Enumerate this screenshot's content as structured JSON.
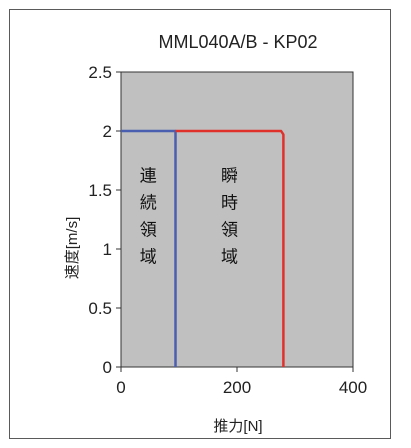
{
  "chart_data": {
    "type": "line",
    "title": "MML040A/B - KP02",
    "xlabel": "推力[N]",
    "ylabel": "速度[m/s]",
    "xlim": [
      0,
      400
    ],
    "ylim": [
      0,
      2.5
    ],
    "xticks": [
      "0",
      "200",
      "400"
    ],
    "yticks": [
      "0",
      "0.5",
      "1",
      "1.5",
      "2",
      "2.5"
    ],
    "grid": false,
    "background": "#c0c0c0",
    "series": [
      {
        "color": "#4a5fb0",
        "x": [
          0,
          94,
          94
        ],
        "y": [
          2,
          2,
          0
        ]
      },
      {
        "color": "#e0302a",
        "x": [
          94,
          276,
          280,
          280
        ],
        "y": [
          2,
          2,
          1.97,
          0
        ]
      }
    ],
    "annotations": [
      {
        "text": "連続領域",
        "x": 47,
        "y": 1.28
      },
      {
        "text": "瞬時領域",
        "x": 187,
        "y": 1.28
      }
    ]
  }
}
